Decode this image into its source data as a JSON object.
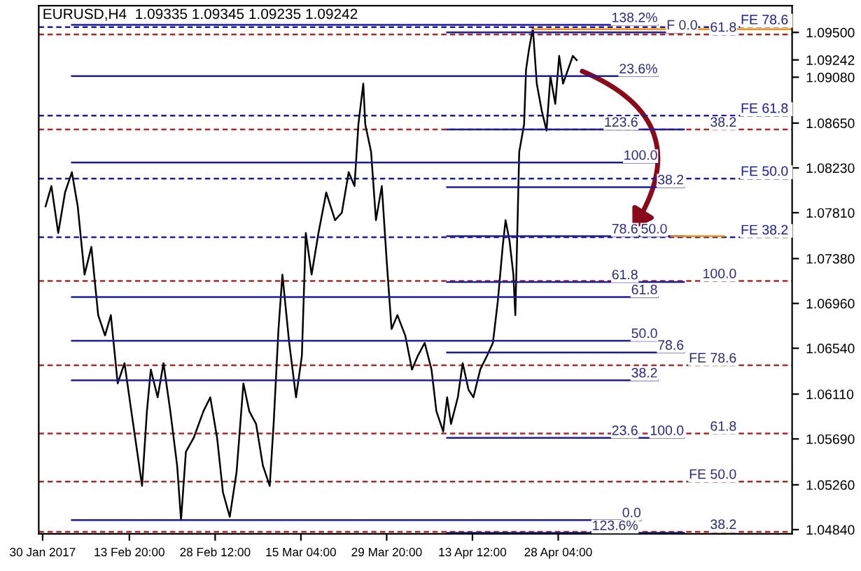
{
  "chart_data": {
    "type": "line",
    "title": "EURUSD,H4  1.09335 1.09345 1.09235 1.09242",
    "xlim": [
      "2017-01-29T08:00",
      "2017-06-07T04:00"
    ],
    "ylim": [
      1.048,
      1.0975
    ],
    "xticks": [
      {
        "value": "2017-01-30T00:00",
        "label": "30 Jan 2017"
      },
      {
        "value": "2017-02-13T20:00",
        "label": "13 Feb 20:00"
      },
      {
        "value": "2017-02-28T12:00",
        "label": "28 Feb 12:00"
      },
      {
        "value": "2017-03-15T04:00",
        "label": "15 Mar 04:00"
      },
      {
        "value": "2017-03-29T20:00",
        "label": "29 Mar 20:00"
      },
      {
        "value": "2017-04-13T12:00",
        "label": "13 Apr 12:00"
      },
      {
        "value": "2017-04-28T04:00",
        "label": "28 Apr 04:00"
      }
    ],
    "yticks": [
      {
        "value": 1.095,
        "label": "1.09500"
      },
      {
        "value": 1.09242,
        "label": "1.09242"
      },
      {
        "value": 1.0908,
        "label": "1.09080"
      },
      {
        "value": 1.0865,
        "label": "1.08650"
      },
      {
        "value": 1.0823,
        "label": "1.08230"
      },
      {
        "value": 1.0781,
        "label": "1.07810"
      },
      {
        "value": 1.0738,
        "label": "1.07380"
      },
      {
        "value": 1.0696,
        "label": "1.06960"
      },
      {
        "value": 1.0654,
        "label": "1.06540"
      },
      {
        "value": 1.0611,
        "label": "1.06110"
      },
      {
        "value": 1.0569,
        "label": "1.05690"
      },
      {
        "value": 1.0526,
        "label": "1.05260"
      },
      {
        "value": 1.0484,
        "label": "1.04840"
      }
    ],
    "grid": false,
    "legend": false,
    "marker": "none",
    "series": [
      {
        "color": "#000000",
        "x": [
          "2017-01-30T12:00",
          "2017-01-31T12:00",
          "2017-02-01T16:00",
          "2017-02-02T20:00",
          "2017-02-04T00:00",
          "2017-02-05T00:00",
          "2017-02-06T04:00",
          "2017-02-07T08:00",
          "2017-02-08T12:00",
          "2017-02-09T16:00",
          "2017-02-10T16:00",
          "2017-02-11T20:00",
          "2017-02-13T00:00",
          "2017-02-14T04:00",
          "2017-02-15T04:00",
          "2017-02-16T00:00",
          "2017-02-16T20:00",
          "2017-02-17T12:00",
          "2017-02-18T16:00",
          "2017-02-19T16:00",
          "2017-02-20T20:00",
          "2017-02-22T00:00",
          "2017-02-22T16:00",
          "2017-02-23T12:00",
          "2017-02-24T20:00",
          "2017-02-26T12:00",
          "2017-02-27T16:00",
          "2017-02-28T20:00",
          "2017-03-01T20:00",
          "2017-03-03T00:00",
          "2017-03-04T04:00",
          "2017-03-05T08:00",
          "2017-03-06T08:00",
          "2017-03-07T12:00",
          "2017-03-08T16:00",
          "2017-03-09T20:00",
          "2017-03-10T12:00",
          "2017-03-11T08:00",
          "2017-03-12T00:00",
          "2017-03-13T04:00",
          "2017-03-14T08:00",
          "2017-03-15T08:00",
          "2017-03-16T00:00",
          "2017-03-17T00:00",
          "2017-03-18T04:00",
          "2017-03-19T12:00",
          "2017-03-21T00:00",
          "2017-03-22T04:00",
          "2017-03-23T08:00",
          "2017-03-24T08:00",
          "2017-03-25T00:00",
          "2017-03-25T20:00",
          "2017-03-26T04:00",
          "2017-03-27T04:00",
          "2017-03-28T00:00",
          "2017-03-29T00:00",
          "2017-03-29T20:00",
          "2017-03-30T16:00",
          "2017-03-31T16:00",
          "2017-04-02T00:00",
          "2017-04-03T04:00",
          "2017-04-04T04:00",
          "2017-04-05T08:00",
          "2017-04-06T12:00",
          "2017-04-07T08:00",
          "2017-04-08T12:00",
          "2017-04-09T04:00",
          "2017-04-09T20:00",
          "2017-04-11T00:00",
          "2017-04-11T20:00",
          "2017-04-12T20:00",
          "2017-04-13T16:00",
          "2017-04-14T20:00",
          "2017-04-16T00:00",
          "2017-04-17T00:00",
          "2017-04-17T20:00",
          "2017-04-18T16:00",
          "2017-04-19T04:00",
          "2017-04-19T20:00",
          "2017-04-20T12:00",
          "2017-04-20T20:00",
          "2017-04-21T12:00",
          "2017-04-22T08:00",
          "2017-04-22T16:00",
          "2017-04-23T04:00",
          "2017-04-23T20:00",
          "2017-04-24T12:00",
          "2017-04-25T08:00",
          "2017-04-26T04:00",
          "2017-04-26T20:00",
          "2017-04-27T16:00",
          "2017-04-28T08:00",
          "2017-04-29T00:00",
          "2017-04-29T20:00",
          "2017-04-30T16:00",
          "2017-05-01T08:00"
        ],
        "values": [
          1.0787,
          1.0806,
          1.0762,
          1.08,
          1.0819,
          1.0787,
          1.0723,
          1.0749,
          1.0685,
          1.0666,
          1.0685,
          1.0621,
          1.064,
          1.0595,
          1.0557,
          1.0525,
          1.0595,
          1.0634,
          1.0608,
          1.064,
          1.0595,
          1.0544,
          1.0493,
          1.0557,
          1.057,
          1.0595,
          1.0608,
          1.057,
          1.0519,
          1.0496,
          1.0538,
          1.0621,
          1.0595,
          1.0583,
          1.0544,
          1.0525,
          1.0583,
          1.0672,
          1.0723,
          1.0659,
          1.0608,
          1.0647,
          1.0762,
          1.0723,
          1.0762,
          1.08,
          1.0774,
          1.0781,
          1.0819,
          1.0806,
          1.0864,
          1.0902,
          1.0864,
          1.0838,
          1.0774,
          1.0806,
          1.0736,
          1.0672,
          1.0685,
          1.0666,
          1.0634,
          1.0647,
          1.0659,
          1.0634,
          1.0595,
          1.0576,
          1.0608,
          1.0583,
          1.0608,
          1.064,
          1.0615,
          1.0608,
          1.0634,
          1.0647,
          1.0659,
          1.0698,
          1.0749,
          1.0774,
          1.0755,
          1.0723,
          1.0685,
          1.0838,
          1.0864,
          1.0915,
          1.0934,
          1.0954,
          1.0902,
          1.0877,
          1.0858,
          1.0909,
          1.0883,
          1.0928,
          1.0902,
          1.0915,
          1.0928,
          1.0924
        ]
      },
      {
        "type": "line",
        "color": "#1c1c9c",
        "x": [
          "2017-02-04T00:00",
          "2017-05-15T04:00"
        ],
        "values": [
          1.0957,
          1.0957
        ]
      },
      {
        "type": "line",
        "color": "#1c1c9c",
        "x": [
          "2017-02-04T00:00",
          "2017-05-15T04:00"
        ],
        "values": [
          1.0909,
          1.0909
        ]
      },
      {
        "type": "line",
        "color": "#1c1c9c",
        "x": [
          "2017-02-04T00:00",
          "2017-05-15T04:00"
        ],
        "values": [
          1.0828,
          1.0828
        ]
      },
      {
        "type": "line",
        "color": "#1c1c9c",
        "x": [
          "2017-02-04T00:00",
          "2017-05-15T04:00"
        ],
        "values": [
          1.0702,
          1.0702
        ]
      },
      {
        "type": "line",
        "color": "#1c1c9c",
        "x": [
          "2017-02-04T00:00",
          "2017-05-15T04:00"
        ],
        "values": [
          1.0661,
          1.0661
        ]
      },
      {
        "type": "line",
        "color": "#1c1c9c",
        "x": [
          "2017-02-04T00:00",
          "2017-05-15T04:00"
        ],
        "values": [
          1.0624,
          1.0624
        ]
      },
      {
        "type": "line",
        "color": "#1c1c9c",
        "x": [
          "2017-02-04T00:00",
          "2017-05-12T08:00"
        ],
        "values": [
          1.0493,
          1.0493
        ]
      },
      {
        "type": "line",
        "color": "#1c1c9c",
        "x": [
          "2017-04-09T04:00",
          "2017-05-19T16:00"
        ],
        "values": [
          1.095,
          1.095
        ]
      },
      {
        "type": "line",
        "color": "#1c1c9c",
        "x": [
          "2017-04-09T04:00",
          "2017-05-19T16:00"
        ],
        "values": [
          1.0859,
          1.0859
        ]
      },
      {
        "type": "line",
        "color": "#1c1c9c",
        "x": [
          "2017-04-09T04:00",
          "2017-05-19T16:00"
        ],
        "values": [
          1.0805,
          1.0805
        ]
      },
      {
        "type": "line",
        "color": "#1c1c9c",
        "x": [
          "2017-04-09T04:00",
          "2017-05-19T16:00"
        ],
        "values": [
          1.0759,
          1.0759
        ]
      },
      {
        "type": "line",
        "color": "#1c1c9c",
        "x": [
          "2017-04-09T04:00",
          "2017-05-19T16:00"
        ],
        "values": [
          1.0716,
          1.0716
        ]
      },
      {
        "type": "line",
        "color": "#1c1c9c",
        "x": [
          "2017-04-09T04:00",
          "2017-05-19T16:00"
        ],
        "values": [
          1.065,
          1.065
        ]
      },
      {
        "type": "line",
        "color": "#1c1c9c",
        "x": [
          "2017-04-09T04:00",
          "2017-05-19T16:00"
        ],
        "values": [
          1.057,
          1.057
        ]
      },
      {
        "type": "line",
        "color": "#1c1c9c",
        "x": [
          "2017-04-09T04:00",
          "2017-05-19T16:00"
        ],
        "values": [
          1.0481,
          1.0481
        ]
      },
      {
        "type": "line",
        "color": "#ff8c00",
        "x": [
          "2017-04-23T20:00",
          "2017-06-07T04:00"
        ],
        "values": [
          1.0953,
          1.0953
        ]
      },
      {
        "type": "line",
        "color": "#ff8c00",
        "x": [
          "2017-05-17T12:00",
          "2017-05-26T12:00"
        ],
        "values": [
          1.0759,
          1.0759
        ]
      }
    ],
    "ref_lines": [
      {
        "axis": "y",
        "value": 1.0955,
        "label": "FE 78.6",
        "color": "#1c1c9c",
        "line_style": "dashed"
      },
      {
        "axis": "y",
        "value": 1.0872,
        "label": "FE 61.8",
        "color": "#1c1c9c",
        "line_style": "dashed"
      },
      {
        "axis": "y",
        "value": 1.0813,
        "label": "FE 50.0",
        "color": "#1c1c9c",
        "line_style": "dashed"
      },
      {
        "axis": "y",
        "value": 1.0758,
        "label": "FE 38.2",
        "color": "#1c1c9c",
        "line_style": "dashed"
      },
      {
        "axis": "y",
        "value": 1.0948,
        "color": "#a52a2a",
        "line_style": "dashed"
      },
      {
        "axis": "y",
        "value": 1.0859,
        "color": "#a52a2a",
        "line_style": "dashed"
      },
      {
        "axis": "y",
        "value": 1.0717,
        "color": "#a52a2a",
        "line_style": "dashed"
      },
      {
        "axis": "y",
        "value": 1.0638,
        "color": "#a52a2a",
        "line_style": "dashed"
      },
      {
        "axis": "y",
        "value": 1.0574,
        "color": "#a52a2a",
        "line_style": "dashed"
      },
      {
        "axis": "y",
        "value": 1.0529,
        "color": "#a52a2a",
        "line_style": "dashed"
      },
      {
        "axis": "y",
        "value": 1.0482,
        "color": "#a52a2a",
        "line_style": "dashed"
      }
    ],
    "annotations": [
      {
        "text": "138.2%",
        "x": "2017-05-15T04:00",
        "y": 1.0957
      },
      {
        "text": "23.6%",
        "x": "2017-05-15T04:00",
        "y": 1.0909
      },
      {
        "text": "100.0",
        "x": "2017-05-15T04:00",
        "y": 1.0828
      },
      {
        "text": "61.8",
        "x": "2017-05-15T04:00",
        "y": 1.0702
      },
      {
        "text": "50.0",
        "x": "2017-05-15T04:00",
        "y": 1.0661
      },
      {
        "text": "38.2",
        "x": "2017-05-15T04:00",
        "y": 1.0624
      },
      {
        "text": "0.0",
        "x": "2017-05-12T08:00",
        "y": 1.0493
      },
      {
        "text": "F 0.0",
        "x": "2017-05-22T00:00",
        "y": 1.095
      },
      {
        "text": "123.6",
        "x": "2017-05-11T20:00",
        "y": 1.0859
      },
      {
        "text": "38.2",
        "x": "2017-05-19T16:00",
        "y": 1.0805
      },
      {
        "text": "78.6",
        "x": "2017-05-11T20:00",
        "y": 1.0759
      },
      {
        "text": "50.0",
        "x": "2017-05-16T20:00",
        "y": 1.0759
      },
      {
        "text": "61.8",
        "x": "2017-05-11T20:00",
        "y": 1.0716
      },
      {
        "text": "78.6",
        "x": "2017-05-19T16:00",
        "y": 1.065
      },
      {
        "text": "23.6",
        "x": "2017-05-11T20:00",
        "y": 1.057
      },
      {
        "text": "100.0",
        "x": "2017-05-19T16:00",
        "y": 1.057
      },
      {
        "text": "123.6%",
        "x": "2017-05-11T20:00",
        "y": 1.0481
      },
      {
        "text": "61.8",
        "x": "2017-05-28T16:00",
        "y": 1.0948
      },
      {
        "text": "38.2",
        "x": "2017-05-28T16:00",
        "y": 1.0859
      },
      {
        "text": "100.0",
        "x": "2017-05-28T16:00",
        "y": 1.0717
      },
      {
        "text": "FE 78.6",
        "x": "2017-05-28T16:00",
        "y": 1.0638
      },
      {
        "text": "61.8",
        "x": "2017-05-28T16:00",
        "y": 1.0574
      },
      {
        "text": "FE 50.0",
        "x": "2017-05-28T16:00",
        "y": 1.0529
      },
      {
        "text": "38.2",
        "x": "2017-05-28T16:00",
        "y": 1.0482
      }
    ]
  }
}
